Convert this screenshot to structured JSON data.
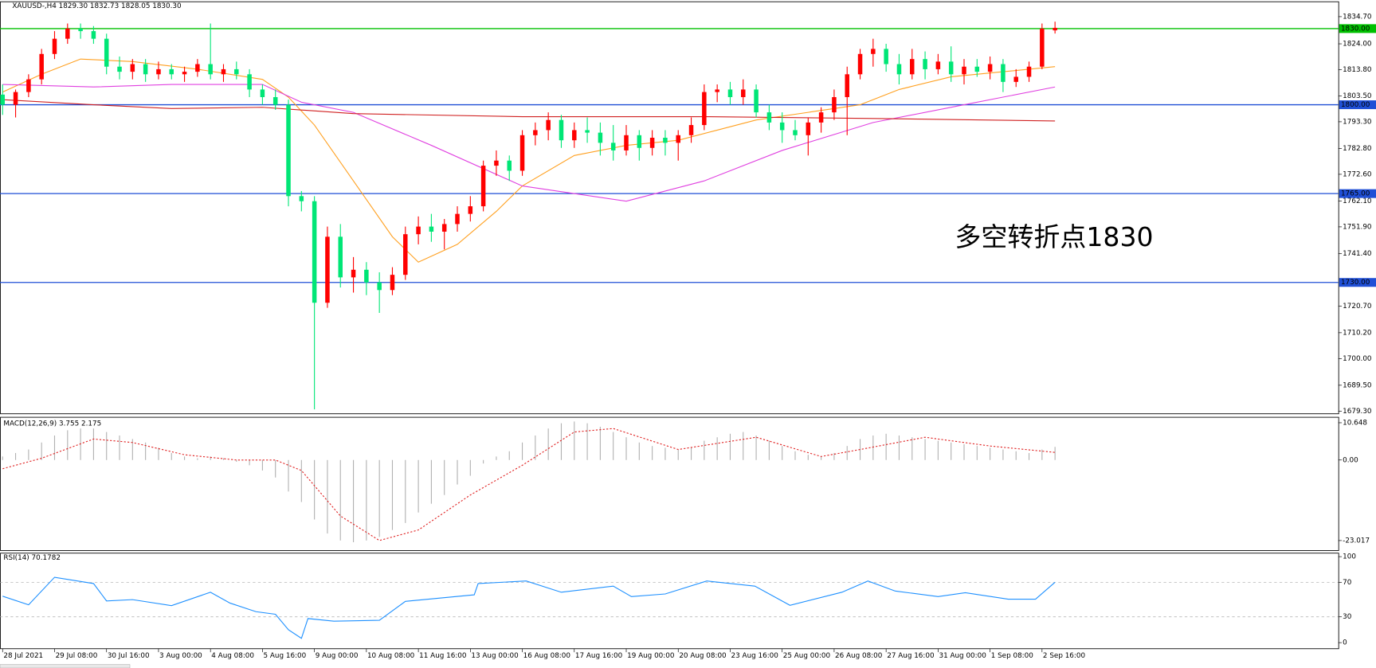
{
  "chart_data": [
    {
      "type": "candlestick",
      "title": "XAUUSD-,H4  1829.30 1832.73 1828.05 1830.30",
      "annotation": "多空转折点1830",
      "annotation_color": "#e8141e",
      "bull_color": "#ff0000",
      "bear_color": "#00e676",
      "open": [
        1804,
        1800,
        1805,
        1810,
        1820,
        1826,
        1830,
        1829,
        1826,
        1815,
        1813,
        1816,
        1812,
        1814,
        1812,
        1813,
        1816,
        1812,
        1814,
        1812,
        1806,
        1803,
        1800,
        1764,
        1762,
        1722,
        1748,
        1732,
        1735,
        1730,
        1727,
        1733,
        1749,
        1752,
        1750,
        1753,
        1757,
        1760,
        1776,
        1778,
        1774,
        1788,
        1790,
        1794,
        1786,
        1790,
        1789,
        1785,
        1782,
        1788,
        1783,
        1787,
        1785,
        1788,
        1792,
        1805,
        1806,
        1803,
        1806,
        1797,
        1793,
        1790,
        1788,
        1793,
        1797,
        1803,
        1812,
        1820,
        1822,
        1816,
        1812,
        1818,
        1814,
        1817,
        1812,
        1815,
        1813,
        1816,
        1809,
        1811,
        1815,
        1829.3
      ],
      "high": [
        1808,
        1806,
        1812,
        1822,
        1829,
        1832,
        1832,
        1831,
        1828,
        1819,
        1818,
        1818,
        1817,
        1816,
        1815,
        1818,
        1832,
        1816,
        1817,
        1814,
        1808,
        1806,
        1802,
        1766,
        1764,
        1752,
        1753,
        1740,
        1738,
        1734,
        1736,
        1752,
        1756,
        1757,
        1755,
        1760,
        1764,
        1778,
        1782,
        1780,
        1790,
        1793,
        1797,
        1796,
        1793,
        1795,
        1793,
        1792,
        1792,
        1790,
        1790,
        1790,
        1790,
        1795,
        1808,
        1808,
        1809,
        1810,
        1808,
        1800,
        1797,
        1794,
        1795,
        1799,
        1806,
        1815,
        1822,
        1826,
        1824,
        1820,
        1822,
        1821,
        1820,
        1823,
        1818,
        1818,
        1819,
        1818,
        1814,
        1817,
        1832,
        1832.73
      ],
      "low": [
        1796,
        1795,
        1803,
        1808,
        1818,
        1824,
        1826,
        1824,
        1812,
        1810,
        1810,
        1809,
        1810,
        1810,
        1809,
        1811,
        1810,
        1809,
        1810,
        1803,
        1800,
        1798,
        1760,
        1758,
        1680,
        1720,
        1728,
        1726,
        1725,
        1718,
        1725,
        1731,
        1745,
        1746,
        1743,
        1750,
        1754,
        1758,
        1772,
        1770,
        1772,
        1784,
        1786,
        1783,
        1783,
        1785,
        1780,
        1778,
        1780,
        1778,
        1780,
        1780,
        1778,
        1785,
        1790,
        1801,
        1800,
        1800,
        1795,
        1790,
        1785,
        1786,
        1780,
        1789,
        1794,
        1788,
        1810,
        1815,
        1813,
        1808,
        1810,
        1810,
        1812,
        1809,
        1808,
        1811,
        1810,
        1805,
        1807,
        1809,
        1814,
        1828.05
      ],
      "close": [
        1800,
        1805,
        1810,
        1820,
        1826,
        1830,
        1829,
        1826,
        1815,
        1813,
        1816,
        1812,
        1814,
        1812,
        1813,
        1816,
        1812,
        1814,
        1812,
        1806,
        1803,
        1800,
        1764,
        1762,
        1722,
        1748,
        1732,
        1735,
        1730,
        1727,
        1733,
        1749,
        1752,
        1750,
        1753,
        1757,
        1760,
        1776,
        1778,
        1774,
        1788,
        1790,
        1794,
        1786,
        1790,
        1789,
        1785,
        1782,
        1788,
        1783,
        1787,
        1785,
        1788,
        1792,
        1805,
        1806,
        1803,
        1806,
        1797,
        1793,
        1790,
        1788,
        1793,
        1797,
        1803,
        1812,
        1820,
        1822,
        1816,
        1812,
        1818,
        1814,
        1817,
        1812,
        1815,
        1813,
        1816,
        1809,
        1811,
        1815,
        1830,
        1830.3
      ],
      "lines": [
        {
          "color": "#ffa020",
          "x": [
            0,
            3,
            6,
            10,
            15,
            20,
            22,
            24,
            27,
            30,
            32,
            35,
            38,
            40,
            44,
            48,
            52,
            55,
            58,
            62,
            66,
            69,
            73,
            77,
            81
          ],
          "values": [
            1805,
            1812,
            1818,
            1817,
            1814,
            1810,
            1803,
            1792,
            1770,
            1748,
            1738,
            1745,
            1758,
            1768,
            1780,
            1784,
            1786,
            1790,
            1794,
            1797,
            1800,
            1806,
            1811,
            1813,
            1815
          ]
        },
        {
          "color": "#e040e0",
          "x": [
            0,
            7,
            13,
            20,
            23,
            27,
            33,
            40,
            48,
            54,
            60,
            67,
            74,
            81
          ],
          "values": [
            1808,
            1807,
            1808,
            1808,
            1801,
            1797,
            1784,
            1768,
            1762,
            1770,
            1782,
            1793,
            1800,
            1807
          ]
        },
        {
          "color": "#d02020",
          "x": [
            0,
            7,
            13,
            20,
            27,
            40,
            54,
            67,
            81
          ],
          "values": [
            1802,
            1800,
            1798.5,
            1799,
            1796.5,
            1795.3,
            1795.3,
            1794.6,
            1793.6
          ]
        }
      ],
      "hlines": [
        {
          "value": 1830,
          "label": "1830.00",
          "color": "#00c000"
        },
        {
          "value": 1800,
          "label": "1800.00",
          "color": "#1f4fd6"
        },
        {
          "value": 1765,
          "label": "1765.00",
          "color": "#1f4fd6"
        },
        {
          "value": 1730,
          "label": "1730.00",
          "color": "#1f4fd6"
        }
      ],
      "ylim": [
        1678.26,
        1840.57
      ],
      "yticks": [
        {
          "value": 1834.7,
          "label": "1834.70"
        },
        {
          "value": 1824,
          "label": "1824.00"
        },
        {
          "value": 1813.8,
          "label": "1813.80"
        },
        {
          "value": 1803.5,
          "label": "1803.50"
        },
        {
          "value": 1793.3,
          "label": "1793.30"
        },
        {
          "value": 1782.8,
          "label": "1782.80"
        },
        {
          "value": 1772.6,
          "label": "1772.60"
        },
        {
          "value": 1762.1,
          "label": "1762.10"
        },
        {
          "value": 1751.9,
          "label": "1751.90"
        },
        {
          "value": 1741.4,
          "label": "1741.40"
        },
        {
          "value": 1720.7,
          "label": "1720.70"
        },
        {
          "value": 1710.2,
          "label": "1710.20"
        },
        {
          "value": 1700,
          "label": "1700.00"
        },
        {
          "value": 1689.5,
          "label": "1689.50"
        },
        {
          "value": 1679.3,
          "label": "1679.30"
        }
      ],
      "xlim": [
        -0.2,
        102.8
      ],
      "xticks": [
        {
          "value": 0,
          "label": "28 Jul 2021"
        },
        {
          "value": 4,
          "label": "29 Jul 08:00"
        },
        {
          "value": 8,
          "label": "30 Jul 16:00"
        },
        {
          "value": 12,
          "label": "3 Aug 00:00"
        },
        {
          "value": 16,
          "label": "4 Aug 08:00"
        },
        {
          "value": 20,
          "label": "5 Aug 16:00"
        },
        {
          "value": 24,
          "label": "9 Aug 00:00"
        },
        {
          "value": 28,
          "label": "10 Aug 08:00"
        },
        {
          "value": 32,
          "label": "11 Aug 16:00"
        },
        {
          "value": 36,
          "label": "13 Aug 00:00"
        },
        {
          "value": 40,
          "label": "16 Aug 08:00"
        },
        {
          "value": 44,
          "label": "17 Aug 16:00"
        },
        {
          "value": 48,
          "label": "19 Aug 00:00"
        },
        {
          "value": 52,
          "label": "20 Aug 08:00"
        },
        {
          "value": 56,
          "label": "23 Aug 16:00"
        },
        {
          "value": 60,
          "label": "25 Aug 00:00"
        },
        {
          "value": 64,
          "label": "26 Aug 08:00"
        },
        {
          "value": 68,
          "label": "27 Aug 16:00"
        },
        {
          "value": 72,
          "label": "31 Aug 00:00"
        },
        {
          "value": 76,
          "label": "1 Sep 08:00"
        },
        {
          "value": 80,
          "label": "2 Sep 16:00"
        }
      ]
    },
    {
      "type": "macd",
      "title": "MACD(12,26,9) 3.755 2.175",
      "hist_color": "#b0b0b0",
      "signal_color": "#e02020",
      "values": [
        1,
        2,
        3,
        5,
        7,
        8.5,
        9,
        9,
        8,
        7,
        6,
        5,
        3.5,
        2,
        1,
        0.5,
        1,
        0.5,
        -0.5,
        -1.5,
        -3,
        -5,
        -9,
        -12,
        -17,
        -21,
        -23,
        -23.5,
        -23,
        -22,
        -20,
        -18,
        -15,
        -12.5,
        -10,
        -7,
        -4.5,
        -1,
        1,
        2.5,
        5,
        7,
        9,
        10.5,
        11,
        10.5,
        9.5,
        8,
        6.5,
        5,
        4,
        3.5,
        3,
        3.5,
        5.5,
        6.5,
        7.5,
        8,
        7,
        5.5,
        4,
        2.5,
        1.5,
        1,
        2,
        4,
        6,
        7,
        7.5,
        7,
        6.5,
        6,
        5.5,
        5,
        4.5,
        4,
        3.5,
        3,
        2.5,
        2,
        3,
        3.755
      ],
      "signal": {
        "x": [
          0,
          3,
          7,
          10,
          14,
          18,
          21,
          23,
          26,
          29,
          32,
          36,
          40,
          44,
          47,
          52,
          58,
          63,
          66,
          71,
          76,
          81
        ],
        "values": [
          -2.5,
          0.5,
          6,
          5,
          1.5,
          0,
          0,
          -3,
          -16,
          -23,
          -20,
          -10,
          -1.5,
          8,
          9,
          3,
          6.5,
          1,
          3,
          6.5,
          4,
          2.175
        ]
      },
      "ylim": [
        -25.87,
        12.21
      ],
      "yticks": [
        10.648,
        {
          "value": 0,
          "label": "0.00"
        },
        -23.017
      ]
    },
    {
      "type": "rsi",
      "title": "RSI(14) 70.1782",
      "color": "#1e90ff",
      "levels": [
        70,
        30
      ],
      "x": [
        0,
        2,
        4,
        7,
        8,
        10,
        13,
        16,
        17.5,
        19.5,
        21,
        22,
        23,
        23.5,
        25.5,
        29,
        31,
        36.3,
        36.6,
        40.3,
        43,
        47,
        48.4,
        51,
        54.2,
        57.9,
        60.6,
        64.6,
        66.6,
        68.7,
        72,
        74.1,
        77.4,
        79.5,
        81
      ],
      "values": [
        54,
        44,
        76,
        68.7,
        48.5,
        50,
        43,
        58.6,
        46,
        36,
        33,
        15,
        5,
        28,
        25,
        26,
        48,
        55.6,
        68.7,
        71.7,
        58.6,
        65.7,
        53.5,
        56.6,
        71.7,
        65.7,
        43.4,
        58.6,
        71.7,
        60,
        53.5,
        58,
        50.5,
        50.5,
        70.1782
      ],
      "ylim": [
        -7.07,
        104.04
      ],
      "yticks": [
        100,
        70,
        30,
        0
      ]
    }
  ]
}
